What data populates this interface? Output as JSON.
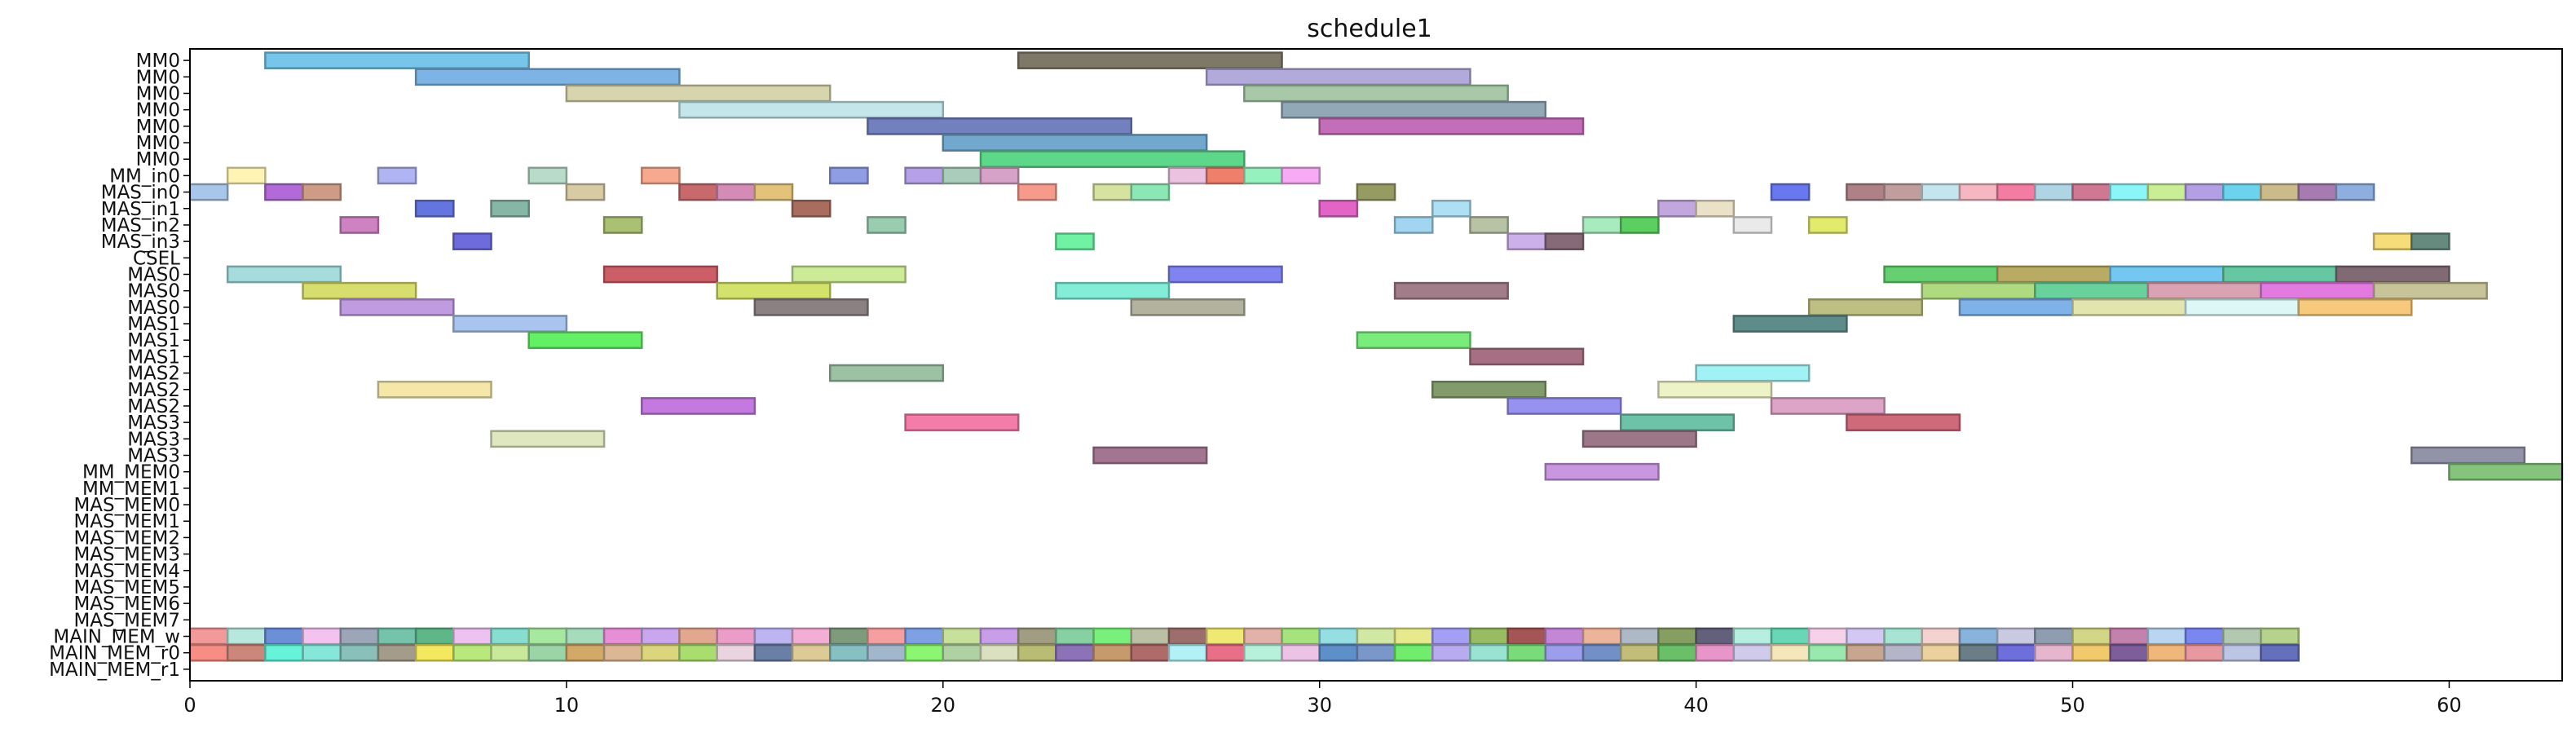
{
  "chart_data": {
    "type": "gantt",
    "title": "schedule1",
    "xlabel": "",
    "ylabel": "",
    "xlim": [
      0,
      63
    ],
    "xticks": [
      0,
      10,
      20,
      30,
      40,
      50,
      60
    ],
    "rows": [
      "MM0",
      "MM0",
      "MM0",
      "MM0",
      "MM0",
      "MM0",
      "MM0",
      "MM_in0",
      "MAS_in0",
      "MAS_in1",
      "MAS_in2",
      "MAS_in3",
      "CSEL",
      "MAS0",
      "MAS0",
      "MAS0",
      "MAS1",
      "MAS1",
      "MAS1",
      "MAS2",
      "MAS2",
      "MAS2",
      "MAS3",
      "MAS3",
      "MAS3",
      "MM_MEM0",
      "MM_MEM1",
      "MAS_MEM0",
      "MAS_MEM1",
      "MAS_MEM2",
      "MAS_MEM3",
      "MAS_MEM4",
      "MAS_MEM5",
      "MAS_MEM6",
      "MAS_MEM7",
      "MAIN_MEM_w",
      "MAIN_MEM_r0",
      "MAIN_MEM_r1"
    ],
    "tasks": [
      {
        "row": 0,
        "start": 2,
        "end": 9,
        "color": "#76C6EC"
      },
      {
        "row": 0,
        "start": 22,
        "end": 29,
        "color": "#7D7868"
      },
      {
        "row": 1,
        "start": 6,
        "end": 13,
        "color": "#7DB3E5"
      },
      {
        "row": 1,
        "start": 27,
        "end": 34,
        "color": "#B3AADC"
      },
      {
        "row": 2,
        "start": 10,
        "end": 17,
        "color": "#D7D5AE"
      },
      {
        "row": 2,
        "start": 28,
        "end": 35,
        "color": "#A8C8A8"
      },
      {
        "row": 3,
        "start": 13,
        "end": 20,
        "color": "#C4E6EA"
      },
      {
        "row": 3,
        "start": 29,
        "end": 36,
        "color": "#92A8B6"
      },
      {
        "row": 4,
        "start": 18,
        "end": 25,
        "color": "#7280BE"
      },
      {
        "row": 4,
        "start": 30,
        "end": 37,
        "color": "#C26EB8"
      },
      {
        "row": 5,
        "start": 20,
        "end": 27,
        "color": "#73A8CE"
      },
      {
        "row": 6,
        "start": 21,
        "end": 28,
        "color": "#5DD88A"
      },
      {
        "row": 7,
        "start": 1,
        "end": 2,
        "color": "#FFF4B3"
      },
      {
        "row": 7,
        "start": 5,
        "end": 6,
        "color": "#B1B4F2"
      },
      {
        "row": 7,
        "start": 9,
        "end": 10,
        "color": "#B8DCC9"
      },
      {
        "row": 7,
        "start": 12,
        "end": 13,
        "color": "#F7A98F"
      },
      {
        "row": 7,
        "start": 17,
        "end": 18,
        "color": "#8E9DE4"
      },
      {
        "row": 7,
        "start": 19,
        "end": 20,
        "color": "#B6A1E9"
      },
      {
        "row": 7,
        "start": 20,
        "end": 21,
        "color": "#A9CDBA"
      },
      {
        "row": 7,
        "start": 21,
        "end": 22,
        "color": "#D7A2C8"
      },
      {
        "row": 7,
        "start": 26,
        "end": 27,
        "color": "#EBC2DF"
      },
      {
        "row": 7,
        "start": 27,
        "end": 28,
        "color": "#EF7F6A"
      },
      {
        "row": 7,
        "start": 28,
        "end": 29,
        "color": "#95F2BE"
      },
      {
        "row": 7,
        "start": 29,
        "end": 30,
        "color": "#F9AAF4"
      },
      {
        "row": 8,
        "start": 0,
        "end": 1,
        "color": "#A8C6EA"
      },
      {
        "row": 8,
        "start": 2,
        "end": 3,
        "color": "#B36AD9"
      },
      {
        "row": 8,
        "start": 3,
        "end": 4,
        "color": "#CE9B87"
      },
      {
        "row": 8,
        "start": 10,
        "end": 11,
        "color": "#D7CBA3"
      },
      {
        "row": 8,
        "start": 13,
        "end": 14,
        "color": "#C86A6C"
      },
      {
        "row": 8,
        "start": 14,
        "end": 15,
        "color": "#D48BB6"
      },
      {
        "row": 8,
        "start": 15,
        "end": 16,
        "color": "#E3C27A"
      },
      {
        "row": 8,
        "start": 22,
        "end": 23,
        "color": "#F69B8C"
      },
      {
        "row": 8,
        "start": 24,
        "end": 25,
        "color": "#D6E2A0"
      },
      {
        "row": 8,
        "start": 25,
        "end": 26,
        "color": "#8BE8B4"
      },
      {
        "row": 8,
        "start": 31,
        "end": 32,
        "color": "#959B61"
      },
      {
        "row": 8,
        "start": 42,
        "end": 43,
        "color": "#6978F0"
      },
      {
        "row": 8,
        "start": 44,
        "end": 45,
        "color": "#AE8187"
      },
      {
        "row": 8,
        "start": 45,
        "end": 46,
        "color": "#C19E9E"
      },
      {
        "row": 8,
        "start": 46,
        "end": 47,
        "color": "#C4E5EE"
      },
      {
        "row": 8,
        "start": 47,
        "end": 48,
        "color": "#F7B7C2"
      },
      {
        "row": 8,
        "start": 48,
        "end": 49,
        "color": "#F37CA2"
      },
      {
        "row": 8,
        "start": 49,
        "end": 50,
        "color": "#AFD4E3"
      },
      {
        "row": 8,
        "start": 50,
        "end": 51,
        "color": "#CE7893"
      },
      {
        "row": 8,
        "start": 51,
        "end": 52,
        "color": "#8BF6F8"
      },
      {
        "row": 8,
        "start": 52,
        "end": 53,
        "color": "#C9EE95"
      },
      {
        "row": 8,
        "start": 53,
        "end": 54,
        "color": "#B3A0E4"
      },
      {
        "row": 8,
        "start": 54,
        "end": 55,
        "color": "#6BD3EE"
      },
      {
        "row": 8,
        "start": 55,
        "end": 56,
        "color": "#CBBB8A"
      },
      {
        "row": 8,
        "start": 56,
        "end": 57,
        "color": "#A57BB2"
      },
      {
        "row": 8,
        "start": 57,
        "end": 58,
        "color": "#8DAEDF"
      },
      {
        "row": 9,
        "start": 6,
        "end": 7,
        "color": "#6575E0"
      },
      {
        "row": 9,
        "start": 8,
        "end": 9,
        "color": "#86B6A6"
      },
      {
        "row": 9,
        "start": 16,
        "end": 17,
        "color": "#A86D5F"
      },
      {
        "row": 9,
        "start": 30,
        "end": 31,
        "color": "#E164C6"
      },
      {
        "row": 9,
        "start": 33,
        "end": 34,
        "color": "#ADE0F5"
      },
      {
        "row": 9,
        "start": 39,
        "end": 40,
        "color": "#C2A6DE"
      },
      {
        "row": 9,
        "start": 40,
        "end": 41,
        "color": "#EAE1C6"
      },
      {
        "row": 10,
        "start": 4,
        "end": 5,
        "color": "#CF82C2"
      },
      {
        "row": 10,
        "start": 11,
        "end": 12,
        "color": "#AAC073"
      },
      {
        "row": 10,
        "start": 18,
        "end": 19,
        "color": "#9ACDB0"
      },
      {
        "row": 10,
        "start": 32,
        "end": 33,
        "color": "#A2D6F0"
      },
      {
        "row": 10,
        "start": 34,
        "end": 35,
        "color": "#B8C3A6"
      },
      {
        "row": 10,
        "start": 37,
        "end": 38,
        "color": "#A7EBBE"
      },
      {
        "row": 10,
        "start": 38,
        "end": 39,
        "color": "#5BCF5F"
      },
      {
        "row": 10,
        "start": 41,
        "end": 42,
        "color": "#EAEAEA"
      },
      {
        "row": 10,
        "start": 43,
        "end": 44,
        "color": "#E3EB6C"
      },
      {
        "row": 11,
        "start": 7,
        "end": 8,
        "color": "#6E6CDC"
      },
      {
        "row": 11,
        "start": 23,
        "end": 24,
        "color": "#71F1A4"
      },
      {
        "row": 11,
        "start": 35,
        "end": 36,
        "color": "#CCB0EA"
      },
      {
        "row": 11,
        "start": 36,
        "end": 37,
        "color": "#866A77"
      },
      {
        "row": 11,
        "start": 58,
        "end": 59,
        "color": "#F6DD7A"
      },
      {
        "row": 11,
        "start": 59,
        "end": 60,
        "color": "#678A7E"
      },
      {
        "row": 13,
        "start": 1,
        "end": 4,
        "color": "#A7DCDC"
      },
      {
        "row": 13,
        "start": 11,
        "end": 14,
        "color": "#CC5E67"
      },
      {
        "row": 13,
        "start": 16,
        "end": 19,
        "color": "#CCEA98"
      },
      {
        "row": 13,
        "start": 26,
        "end": 29,
        "color": "#8184F0"
      },
      {
        "row": 13,
        "start": 45,
        "end": 48,
        "color": "#65CF72"
      },
      {
        "row": 13,
        "start": 48,
        "end": 51,
        "color": "#B9AB64"
      },
      {
        "row": 13,
        "start": 51,
        "end": 54,
        "color": "#73C7F1"
      },
      {
        "row": 13,
        "start": 54,
        "end": 57,
        "color": "#66C8A3"
      },
      {
        "row": 13,
        "start": 57,
        "end": 60,
        "color": "#806A74"
      },
      {
        "row": 14,
        "start": 3,
        "end": 6,
        "color": "#D8DE6E"
      },
      {
        "row": 14,
        "start": 14,
        "end": 17,
        "color": "#D2E26A"
      },
      {
        "row": 14,
        "start": 23,
        "end": 26,
        "color": "#83EDD8"
      },
      {
        "row": 14,
        "start": 32,
        "end": 35,
        "color": "#A07D88"
      },
      {
        "row": 14,
        "start": 46,
        "end": 49,
        "color": "#AFDA80"
      },
      {
        "row": 14,
        "start": 49,
        "end": 52,
        "color": "#69D29C"
      },
      {
        "row": 14,
        "start": 52,
        "end": 55,
        "color": "#D9A3B3"
      },
      {
        "row": 14,
        "start": 55,
        "end": 58,
        "color": "#E27AE0"
      },
      {
        "row": 14,
        "start": 58,
        "end": 61,
        "color": "#C8C49A"
      },
      {
        "row": 15,
        "start": 4,
        "end": 7,
        "color": "#C19BE0"
      },
      {
        "row": 15,
        "start": 15,
        "end": 18,
        "color": "#8B8182"
      },
      {
        "row": 15,
        "start": 25,
        "end": 28,
        "color": "#B3B29E"
      },
      {
        "row": 15,
        "start": 43,
        "end": 46,
        "color": "#BDBF83"
      },
      {
        "row": 15,
        "start": 47,
        "end": 50,
        "color": "#7EB2E9"
      },
      {
        "row": 15,
        "start": 50,
        "end": 53,
        "color": "#E3E5AE"
      },
      {
        "row": 15,
        "start": 53,
        "end": 56,
        "color": "#DDF7F6"
      },
      {
        "row": 15,
        "start": 56,
        "end": 59,
        "color": "#F6C97C"
      },
      {
        "row": 16,
        "start": 7,
        "end": 10,
        "color": "#A9C4EE"
      },
      {
        "row": 16,
        "start": 41,
        "end": 44,
        "color": "#5E8C8A"
      },
      {
        "row": 17,
        "start": 9,
        "end": 12,
        "color": "#64F064"
      },
      {
        "row": 17,
        "start": 31,
        "end": 34,
        "color": "#7AEC7C"
      },
      {
        "row": 18,
        "start": 34,
        "end": 37,
        "color": "#A76F83"
      },
      {
        "row": 19,
        "start": 17,
        "end": 20,
        "color": "#9CC1A3"
      },
      {
        "row": 19,
        "start": 40,
        "end": 43,
        "color": "#A0F2F4"
      },
      {
        "row": 20,
        "start": 5,
        "end": 8,
        "color": "#F4E7A8"
      },
      {
        "row": 20,
        "start": 33,
        "end": 36,
        "color": "#829B6A"
      },
      {
        "row": 20,
        "start": 39,
        "end": 42,
        "color": "#EDF3C6"
      },
      {
        "row": 21,
        "start": 12,
        "end": 15,
        "color": "#C379DF"
      },
      {
        "row": 21,
        "start": 35,
        "end": 38,
        "color": "#9791F0"
      },
      {
        "row": 21,
        "start": 42,
        "end": 45,
        "color": "#DEA4C7"
      },
      {
        "row": 22,
        "start": 19,
        "end": 22,
        "color": "#F47DA8"
      },
      {
        "row": 22,
        "start": 38,
        "end": 41,
        "color": "#6DC2A7"
      },
      {
        "row": 22,
        "start": 44,
        "end": 47,
        "color": "#CF6A7B"
      },
      {
        "row": 23,
        "start": 8,
        "end": 11,
        "color": "#DEE7C0"
      },
      {
        "row": 23,
        "start": 37,
        "end": 40,
        "color": "#9B7788"
      },
      {
        "row": 24,
        "start": 24,
        "end": 27,
        "color": "#A27690"
      },
      {
        "row": 24,
        "start": 59,
        "end": 62,
        "color": "#9293A9"
      },
      {
        "row": 25,
        "start": 36,
        "end": 39,
        "color": "#C897E0"
      },
      {
        "row": 25,
        "start": 60,
        "end": 63,
        "color": "#86C37D"
      }
    ],
    "mem_rows": {
      "MAIN_MEM_w": {
        "row": 35,
        "start": 0,
        "colors": [
          "#F29A9A",
          "#B8E7DD",
          "#6C8FD8",
          "#F3C2EE",
          "#9DA6B9",
          "#76C3AC",
          "#5FB788",
          "#EDC2F1",
          "#86DDD0",
          "#A7E8A0",
          "#A6DCBB",
          "#E78FD6",
          "#C9A6EE",
          "#E1A78F",
          "#EB9CC7",
          "#BDB5F1",
          "#F3AED6",
          "#7E9B7B",
          "#F59FA0",
          "#7FA1E4",
          "#C7E09B",
          "#C89EE9",
          "#A19D83",
          "#87D0A1",
          "#7AF07C",
          "#BBC0A4",
          "#9D6F6C",
          "#EFE974",
          "#E2B2AA",
          "#A6E27E",
          "#95DEE2",
          "#D1E7A4",
          "#E6EA8C",
          "#A49FF4",
          "#97BC62",
          "#A45555",
          "#C487D6",
          "#EDB49C",
          "#AFB9C6",
          "#869E62",
          "#62607A",
          "#B6EFE0",
          "#67D7B5",
          "#F5D1EA",
          "#D3C7F4",
          "#A8E4D3",
          "#F4D2CF",
          "#89B3DA",
          "#C9CAE1",
          "#8E9DAF",
          "#D2D686",
          "#C381AE",
          "#B9D5F0",
          "#7A87F1",
          "#B2C8B0",
          "#B5D38C"
        ]
      },
      "MAIN_MEM_r0": {
        "row": 36,
        "start": 0,
        "colors": [
          "#F78E86",
          "#CD877A",
          "#66F3DA",
          "#86E6D7",
          "#89C0B9",
          "#A49C8B",
          "#F3E85F",
          "#B9E87C",
          "#C9E99A",
          "#9BD4A6",
          "#D2A969",
          "#DBB795",
          "#DBD57E",
          "#A9DE6F",
          "#EAD4DF",
          "#6A7FA5",
          "#DDCB97",
          "#87C0C2",
          "#A2B7CB",
          "#8CF571",
          "#B0D2A2",
          "#DAE0C0",
          "#B9BD74",
          "#8C73B8",
          "#C79A6D",
          "#AF6A6A",
          "#B2F1F6",
          "#E96F88",
          "#B8F1DB",
          "#ECC3E5",
          "#5F8FC9",
          "#7A97C9",
          "#72EC6C",
          "#B9ABF0",
          "#99E3D3",
          "#7ADB7B",
          "#9C9DEB",
          "#7290C6",
          "#C2BE7A",
          "#6ABF68",
          "#E896C9",
          "#D0CBEB",
          "#F6E6BC",
          "#99E9AE",
          "#C7A58E",
          "#B4B5C9",
          "#ECD19F",
          "#6B7E88",
          "#6F6FDB",
          "#E6B6CE",
          "#F0CA6C",
          "#7E5E9A",
          "#F0B77D",
          "#E798A0",
          "#BDC5E4",
          "#6570BD"
        ]
      }
    }
  }
}
